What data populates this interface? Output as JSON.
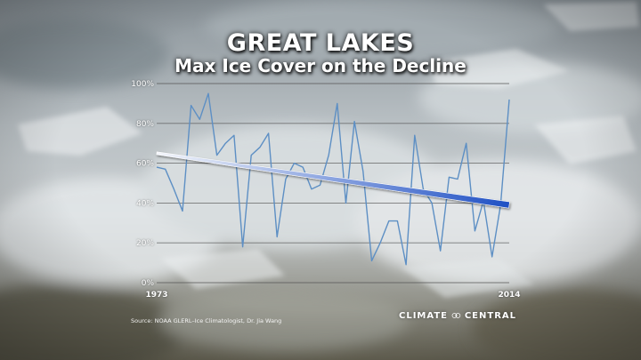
{
  "title": "GREAT LAKES",
  "subtitle": "Max Ice Cover on the Decline",
  "source": "Source: NOAA GLERL–Ice Climatologist, Dr. Jia Wang",
  "brand": {
    "word1": "CLIMATE",
    "word2": "CENTRAL",
    "logo_icon": "climate-central-logo-icon"
  },
  "colors": {
    "series_line": "#5d8fc4",
    "trend_start": "#f4f6fb",
    "trend_end": "#1f50c4",
    "grid": "#555555"
  },
  "chart_data": {
    "type": "line",
    "title": "GREAT LAKES",
    "subtitle": "Max Ice Cover on the Decline",
    "x_tick_labels": [
      "1973",
      "2014"
    ],
    "y_tick_labels": [
      "0%",
      "20%",
      "40%",
      "60%",
      "80%",
      "100%"
    ],
    "xlim": [
      1973,
      2014
    ],
    "ylim": [
      0,
      100
    ],
    "grid": "horizontal",
    "series": [
      {
        "x": [
          1973,
          1974,
          1975,
          1976,
          1977,
          1978,
          1979,
          1980,
          1981,
          1982,
          1983,
          1984,
          1985,
          1986,
          1987,
          1988,
          1989,
          1990,
          1991,
          1992,
          1993,
          1994,
          1995,
          1996,
          1997,
          1998,
          1999,
          2000,
          2001,
          2002,
          2003,
          2004,
          2005,
          2006,
          2007,
          2008,
          2009,
          2010,
          2011,
          2012,
          2013,
          2014
        ],
        "values": [
          58,
          57,
          47,
          36,
          89,
          82,
          95,
          64,
          70,
          74,
          18,
          64,
          68,
          75,
          23,
          52,
          60,
          58,
          47,
          49,
          64,
          90,
          40,
          81,
          56,
          11,
          20,
          31,
          31,
          9,
          74,
          47,
          40,
          16,
          53,
          52,
          70,
          26,
          41,
          13,
          39,
          92
        ]
      }
    ],
    "trend": {
      "start": [
        1973,
        65
      ],
      "end": [
        2014,
        39
      ]
    }
  }
}
